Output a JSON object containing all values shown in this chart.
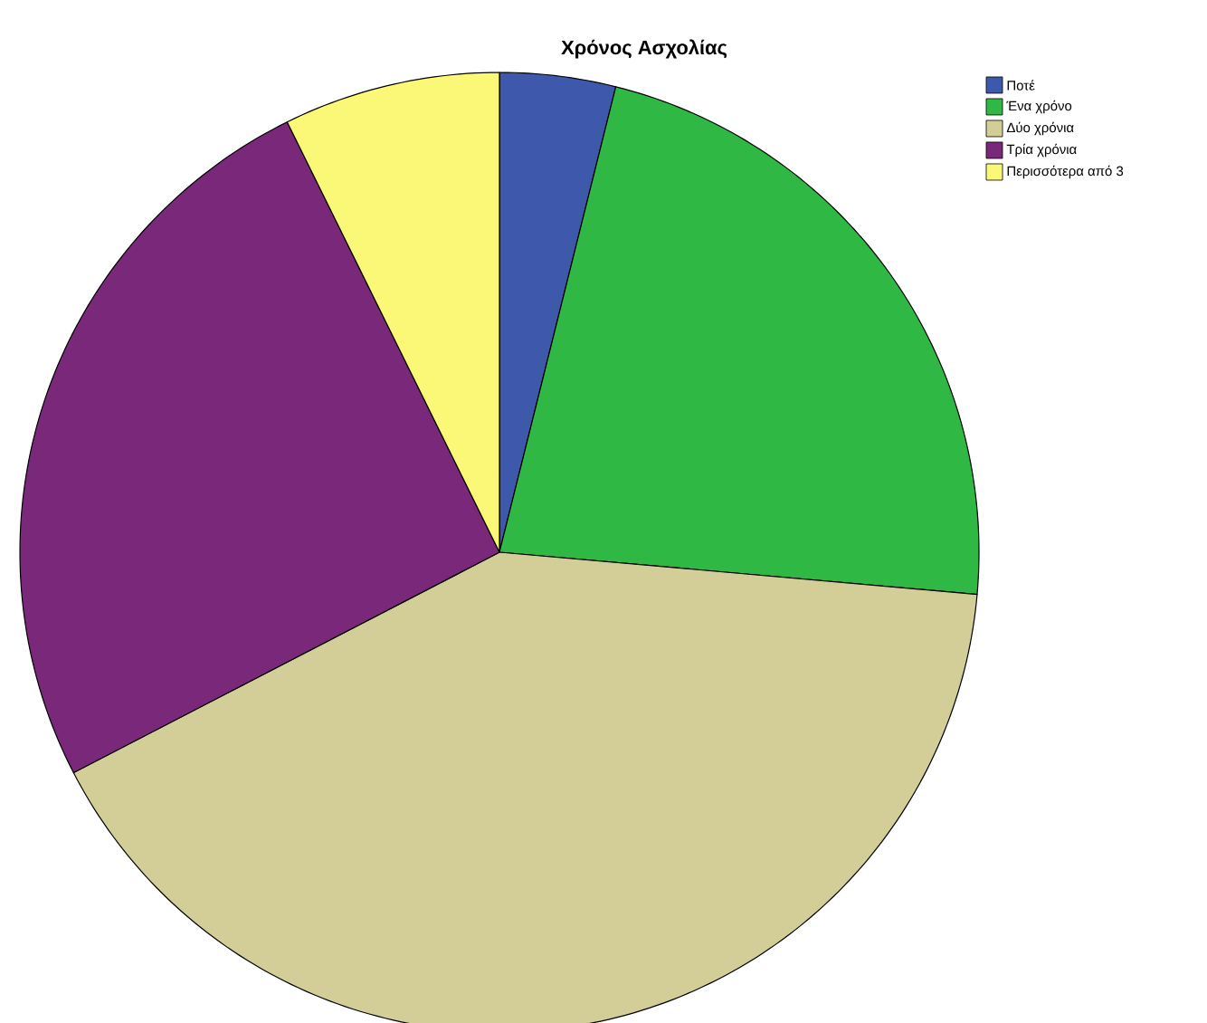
{
  "chart_data": {
    "type": "pie",
    "title": "Χρόνος Ασχολίας",
    "categories": [
      "Ποτέ",
      "Ένα χρόνο",
      "Δύο χρόνια",
      "Τρία χρόνια",
      "Περισσότερα από 3"
    ],
    "values": [
      3.9,
      22.5,
      41.0,
      25.3,
      7.3
    ],
    "colors": [
      "#3e58ac",
      "#2fb844",
      "#d3ce97",
      "#7a287a",
      "#fbf877"
    ],
    "legend": "top right"
  }
}
